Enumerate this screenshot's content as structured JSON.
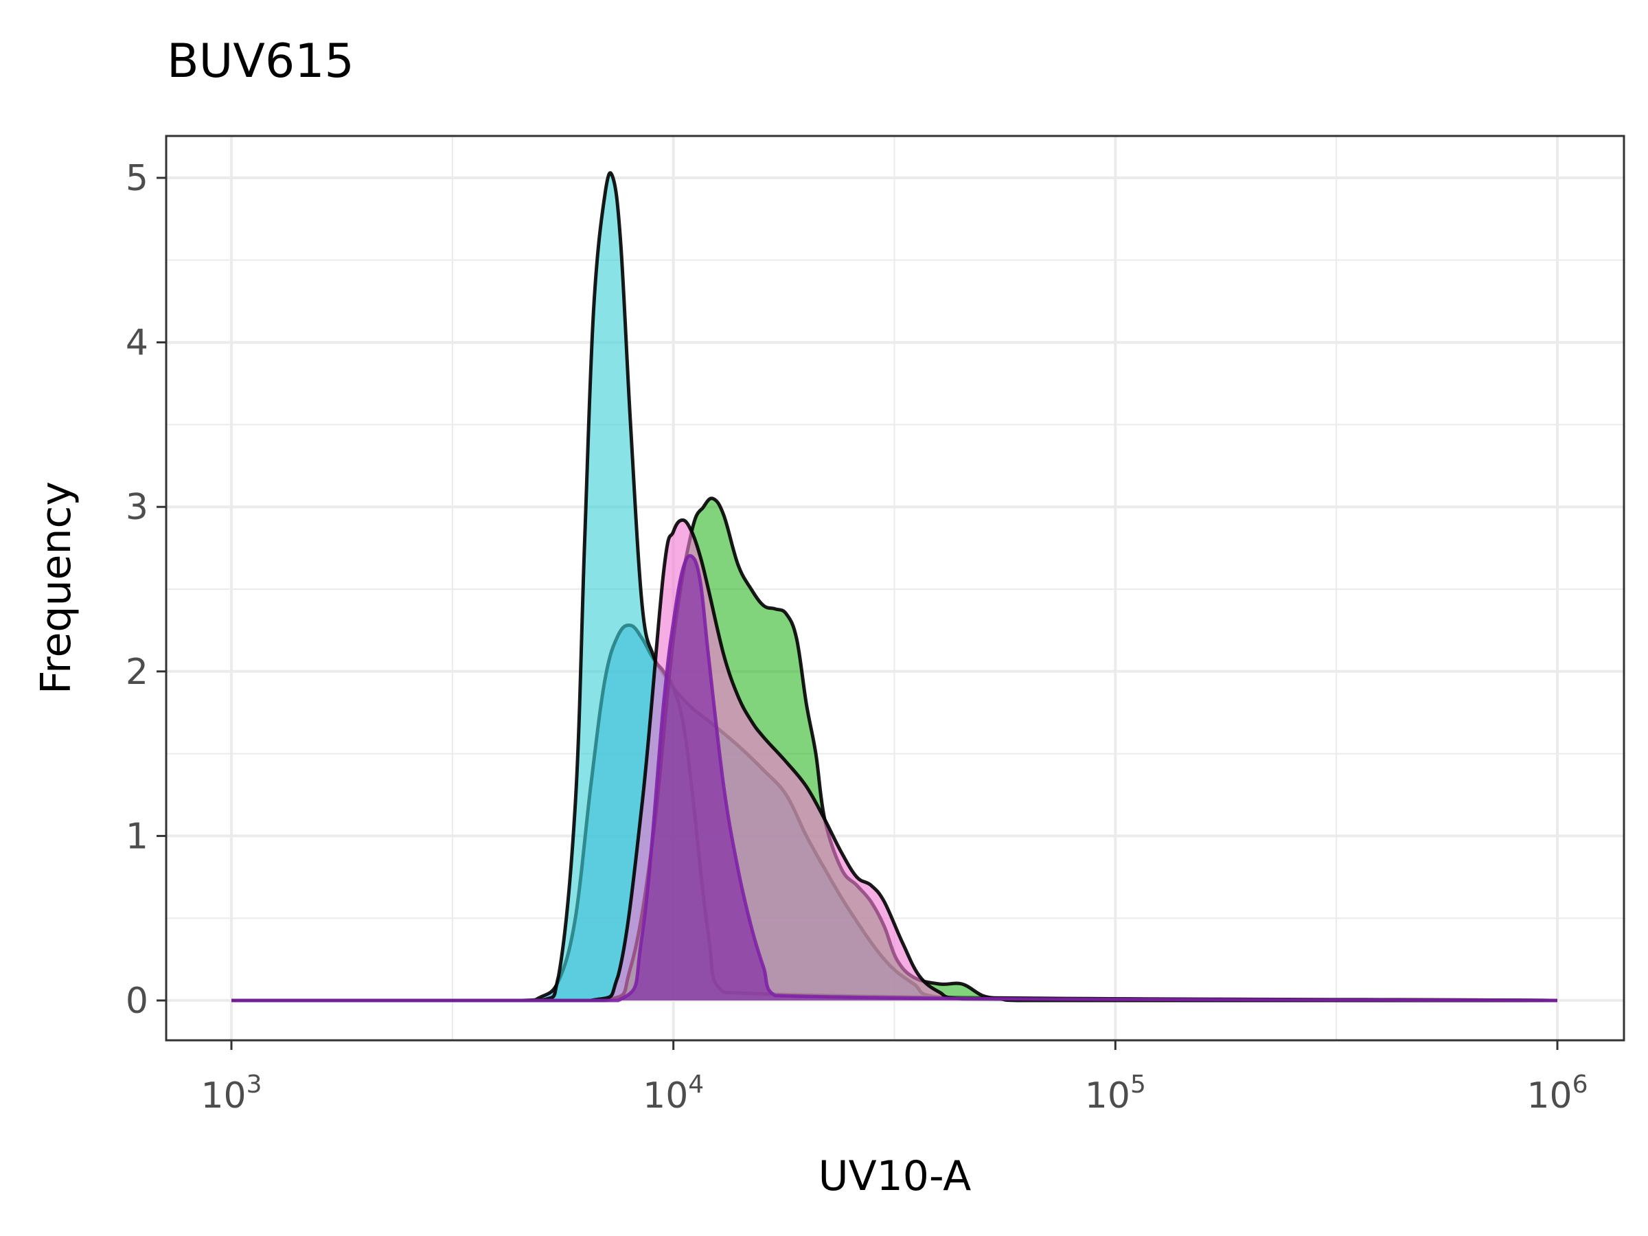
{
  "chart_data": {
    "type": "area",
    "title": "BUV615",
    "xlabel": "UV10-A",
    "ylabel": "Frequency",
    "x_scale": "log10",
    "xlim": [
      1000,
      1000000
    ],
    "ylim": [
      0,
      5
    ],
    "x_ticks": [
      {
        "value": 1000,
        "base": "10",
        "exp": "3"
      },
      {
        "value": 10000,
        "base": "10",
        "exp": "4"
      },
      {
        "value": 100000,
        "base": "10",
        "exp": "5"
      },
      {
        "value": 1000000,
        "base": "10",
        "exp": "6"
      }
    ],
    "y_ticks": [
      "0",
      "1",
      "2",
      "3",
      "4",
      "5"
    ],
    "grid": true,
    "legend": "none",
    "series": [
      {
        "color": "#3f9fe0",
        "stroke": "#000000",
        "x": [
          1000,
          4500,
          5000,
          5500,
          6000,
          6500,
          7000,
          7500,
          8000,
          8500,
          9000,
          10000,
          11000,
          12000,
          14000,
          16000,
          18000,
          20000,
          22000,
          25000,
          30000,
          35000,
          40000,
          1000000
        ],
        "y": [
          0,
          0,
          0.02,
          0.12,
          0.5,
          1.3,
          1.95,
          2.22,
          2.28,
          2.2,
          2.08,
          1.9,
          1.78,
          1.7,
          1.55,
          1.4,
          1.25,
          1.0,
          0.8,
          0.55,
          0.25,
          0.1,
          0.02,
          0
        ]
      },
      {
        "color": "#40d2d6",
        "stroke": "#000000",
        "x": [
          1000,
          5000,
          5500,
          6000,
          6300,
          6600,
          7000,
          7300,
          7600,
          8000,
          8500,
          9000,
          9500,
          10000,
          10500,
          11000,
          12000,
          13000,
          1000000
        ],
        "y": [
          0,
          0,
          0.15,
          1.2,
          2.8,
          4.2,
          4.9,
          5.0,
          4.6,
          3.5,
          2.4,
          2.1,
          2.0,
          1.9,
          1.7,
          1.3,
          0.4,
          0.05,
          0
        ]
      },
      {
        "color": "#33b82b",
        "stroke": "#000000",
        "x": [
          1000,
          7000,
          8000,
          9000,
          10000,
          11000,
          11700,
          12300,
          13000,
          14000,
          15000,
          16000,
          17000,
          18000,
          19000,
          20000,
          21000,
          22000,
          24000,
          26000,
          28000,
          30000,
          32000,
          35000,
          40000,
          45000,
          50000,
          55000,
          60000,
          1000000
        ],
        "y": [
          0,
          0,
          0.2,
          1.0,
          2.2,
          2.85,
          3.0,
          3.05,
          2.95,
          2.65,
          2.5,
          2.4,
          2.38,
          2.35,
          2.2,
          1.8,
          1.5,
          1.1,
          0.8,
          0.7,
          0.6,
          0.45,
          0.25,
          0.14,
          0.1,
          0.1,
          0.03,
          0.01,
          0,
          0
        ]
      },
      {
        "color": "#f07ad2",
        "stroke": "#000000",
        "x": [
          1000,
          6500,
          7500,
          8500,
          9500,
          10000,
          10500,
          11000,
          11500,
          12000,
          13000,
          14000,
          15000,
          16000,
          18000,
          20000,
          22000,
          24000,
          26000,
          28000,
          30000,
          33000,
          36000,
          40000,
          45000,
          1000000
        ],
        "y": [
          0,
          0,
          0.15,
          1.2,
          2.6,
          2.85,
          2.92,
          2.85,
          2.7,
          2.5,
          2.1,
          1.85,
          1.7,
          1.6,
          1.45,
          1.3,
          1.1,
          0.9,
          0.75,
          0.7,
          0.6,
          0.35,
          0.15,
          0.05,
          0.01,
          0
        ]
      },
      {
        "color": "#7e22a6",
        "stroke": "#7e22a6",
        "x": [
          1000,
          7500,
          8500,
          9500,
          10000,
          10500,
          11000,
          11500,
          12000,
          13000,
          14000,
          15000,
          16000,
          17000,
          1000000
        ],
        "y": [
          0,
          0,
          0.4,
          1.8,
          2.3,
          2.62,
          2.7,
          2.55,
          2.1,
          1.3,
          0.8,
          0.45,
          0.2,
          0.03,
          0
        ]
      }
    ]
  }
}
